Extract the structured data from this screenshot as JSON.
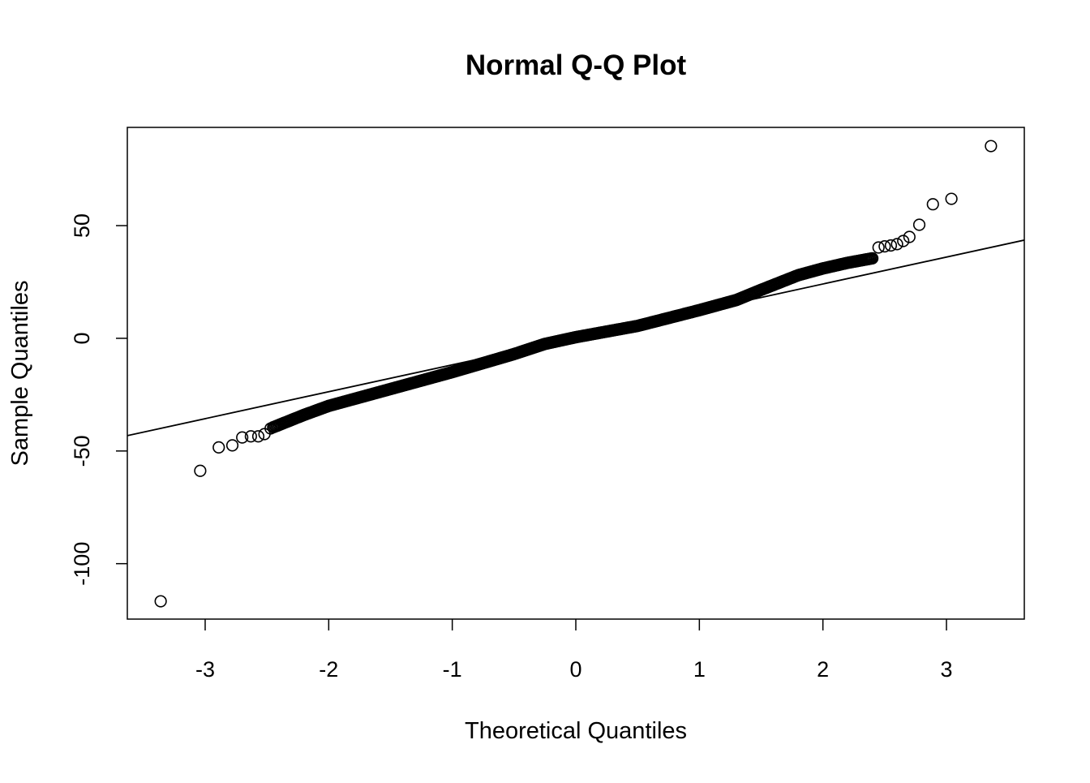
{
  "chart_data": {
    "type": "scatter",
    "title": "Normal Q-Q Plot",
    "xlabel": "Theoretical Quantiles",
    "ylabel": "Sample Quantiles",
    "xlim": [
      -3.63,
      3.63
    ],
    "ylim": [
      -124.6,
      93.6
    ],
    "xticks": [
      -3,
      -2,
      -1,
      0,
      1,
      2,
      3
    ],
    "xtick_labels": [
      "-3",
      "-2",
      "-1",
      "0",
      "1",
      "2",
      "3"
    ],
    "yticks": [
      -100,
      -50,
      0,
      50
    ],
    "ytick_labels": [
      "-100",
      "-50",
      "0",
      "50"
    ],
    "grid": false,
    "reference_line": {
      "intercept": 0.2,
      "slope": 11.95
    },
    "lower_tail_points": [
      [
        -3.36,
        -116.7
      ],
      [
        -3.04,
        -58.8
      ],
      [
        -2.89,
        -48.4
      ],
      [
        -2.78,
        -47.5
      ],
      [
        -2.7,
        -44
      ],
      [
        -2.63,
        -43.5
      ],
      [
        -2.57,
        -43.5
      ],
      [
        -2.52,
        -42.5
      ],
      [
        -2.47,
        -40
      ]
    ],
    "body_curve": {
      "step": 0.01,
      "knots": [
        [
          -2.45,
          -39.5
        ],
        [
          -2.2,
          -34
        ],
        [
          -2.0,
          -30
        ],
        [
          -1.5,
          -22.5
        ],
        [
          -1.0,
          -15
        ],
        [
          -0.5,
          -7
        ],
        [
          -0.25,
          -2.5
        ],
        [
          0,
          0.5
        ],
        [
          0.5,
          5.5
        ],
        [
          1.0,
          12.5
        ],
        [
          1.3,
          17
        ],
        [
          1.5,
          21.5
        ],
        [
          1.8,
          28
        ],
        [
          2.0,
          31
        ],
        [
          2.2,
          33.5
        ],
        [
          2.4,
          35.5
        ]
      ]
    },
    "upper_tail_points": [
      [
        2.45,
        40.3
      ],
      [
        2.5,
        40.8
      ],
      [
        2.55,
        41.2
      ],
      [
        2.6,
        41.8
      ],
      [
        2.65,
        43.2
      ],
      [
        2.7,
        45
      ],
      [
        2.78,
        50.4
      ],
      [
        2.89,
        59.5
      ],
      [
        3.04,
        61.9
      ],
      [
        3.36,
        85.3
      ]
    ]
  }
}
